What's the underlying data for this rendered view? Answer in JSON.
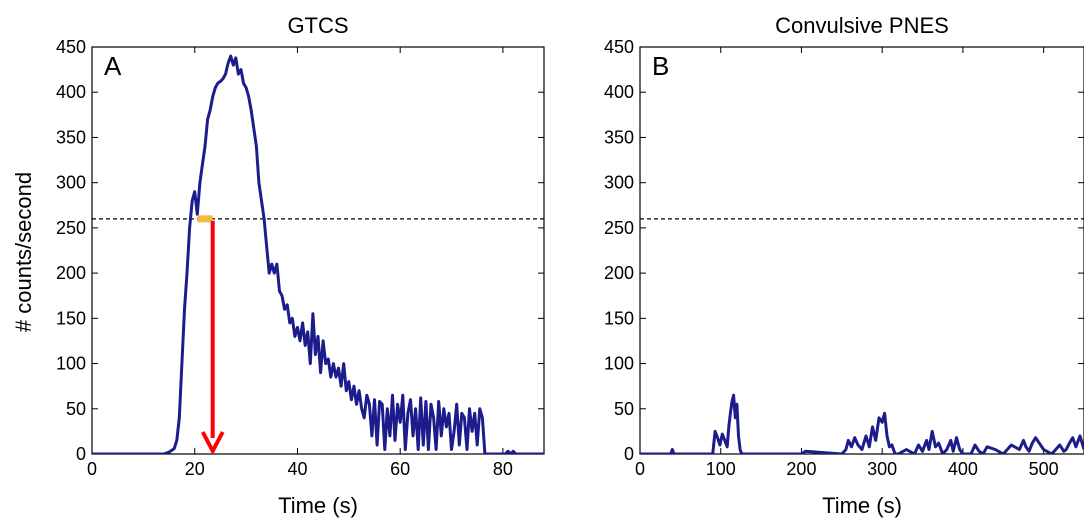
{
  "figure": {
    "ylabel": "# counts/second"
  },
  "chart_data": [
    {
      "type": "line",
      "panel": "A",
      "title": "GTCS",
      "xlabel": "Time (s)",
      "ylabel": "# counts/second",
      "xlim": [
        0,
        88
      ],
      "ylim": [
        0,
        450
      ],
      "xticks": [
        0,
        20,
        40,
        60,
        80
      ],
      "yticks": [
        0,
        50,
        100,
        150,
        200,
        250,
        300,
        350,
        400,
        450
      ],
      "threshold": 260,
      "colors": {
        "line": "#1c1c8c",
        "threshold": "#000000",
        "marker_bar": "#f5b942",
        "arrow": "#ff0000"
      },
      "marker": {
        "x_start": 20.5,
        "x_end": 23.5,
        "y": 260,
        "arrow_x": 23.5
      },
      "series": [
        {
          "x": [
            0,
            14,
            15,
            16,
            16.5,
            17,
            17.5,
            18,
            18.5,
            19,
            19.5,
            20,
            20.5,
            21,
            21.5,
            22,
            22.5,
            23,
            23.5,
            24,
            24.5,
            25,
            25.5,
            26,
            26.5,
            27,
            27.5,
            28,
            28.5,
            29,
            29.5,
            30,
            30.5,
            31,
            31.5,
            32,
            32.5,
            33,
            33.5,
            34,
            34.5,
            35,
            35.5,
            36,
            36.5,
            37,
            37.5,
            38,
            38.5,
            39,
            39.5,
            40,
            40.5,
            41,
            41.5,
            42,
            42.5,
            43,
            43.5,
            44,
            44.5,
            45,
            45.5,
            46,
            46.5,
            47,
            47.5,
            48,
            48.5,
            49,
            49.5,
            50,
            50.5,
            51,
            51.5,
            52,
            52.5,
            53,
            53.5,
            54,
            54.5,
            55,
            55.5,
            56,
            56.5,
            57,
            57.5,
            58,
            58.5,
            59,
            59.5,
            60,
            60.5,
            61,
            61.5,
            62,
            62.5,
            63,
            63.5,
            64,
            64.5,
            65,
            65.5,
            66,
            66.5,
            67,
            67.5,
            68,
            68.5,
            69,
            69.5,
            70,
            70.5,
            71,
            71.5,
            72,
            72.5,
            73,
            73.5,
            74,
            74.5,
            75,
            75.5,
            76,
            76.5,
            77,
            80,
            80.5,
            81,
            81.5,
            82,
            82.5,
            83,
            88
          ],
          "y": [
            0,
            0,
            2,
            6,
            15,
            40,
            100,
            160,
            200,
            250,
            280,
            290,
            265,
            300,
            320,
            340,
            370,
            380,
            395,
            405,
            410,
            412,
            415,
            420,
            432,
            440,
            430,
            438,
            420,
            425,
            410,
            405,
            395,
            380,
            360,
            340,
            300,
            280,
            260,
            230,
            200,
            210,
            200,
            210,
            180,
            175,
            160,
            165,
            145,
            150,
            130,
            140,
            125,
            145,
            120,
            135,
            100,
            155,
            110,
            130,
            90,
            125,
            100,
            105,
            85,
            100,
            85,
            95,
            75,
            100,
            70,
            80,
            60,
            75,
            55,
            70,
            50,
            40,
            65,
            55,
            20,
            60,
            10,
            58,
            55,
            5,
            50,
            20,
            65,
            15,
            55,
            35,
            65,
            5,
            45,
            60,
            20,
            50,
            5,
            62,
            10,
            58,
            5,
            55,
            40,
            5,
            58,
            20,
            50,
            30,
            45,
            5,
            25,
            55,
            10,
            45,
            40,
            5,
            50,
            25,
            45,
            10,
            50,
            40,
            0,
            0,
            0,
            0,
            3,
            0,
            3,
            0,
            0,
            0
          ]
        }
      ]
    },
    {
      "type": "line",
      "panel": "B",
      "title": "Convulsive PNES",
      "xlabel": "Time (s)",
      "xlim": [
        0,
        550
      ],
      "ylim": [
        0,
        450
      ],
      "xticks": [
        0,
        100,
        200,
        300,
        400,
        500
      ],
      "yticks": [
        0,
        50,
        100,
        150,
        200,
        250,
        300,
        350,
        400,
        450
      ],
      "threshold": 260,
      "colors": {
        "line": "#1c1c8c",
        "threshold": "#000000"
      },
      "series": [
        {
          "x": [
            0,
            38,
            40,
            42,
            44,
            90,
            93,
            96,
            99,
            102,
            105,
            108,
            110,
            112,
            114,
            116,
            118,
            120,
            122,
            124,
            126,
            130,
            200,
            205,
            250,
            255,
            258,
            262,
            266,
            270,
            275,
            280,
            284,
            288,
            292,
            296,
            300,
            303,
            306,
            309,
            312,
            316,
            320,
            330,
            340,
            345,
            350,
            355,
            358,
            362,
            366,
            370,
            375,
            380,
            385,
            388,
            392,
            396,
            400,
            410,
            415,
            420,
            425,
            430,
            440,
            450,
            460,
            470,
            475,
            478,
            482,
            486,
            490,
            500,
            510,
            520,
            525,
            528,
            532,
            536,
            540,
            545,
            550
          ],
          "y": [
            0,
            0,
            5,
            0,
            0,
            0,
            25,
            18,
            10,
            22,
            15,
            8,
            30,
            45,
            58,
            65,
            40,
            55,
            20,
            5,
            0,
            0,
            0,
            3,
            0,
            5,
            15,
            8,
            18,
            10,
            5,
            20,
            8,
            30,
            15,
            40,
            35,
            45,
            20,
            8,
            10,
            0,
            0,
            5,
            0,
            10,
            3,
            15,
            5,
            25,
            8,
            12,
            0,
            5,
            15,
            3,
            18,
            5,
            0,
            0,
            10,
            3,
            0,
            8,
            5,
            0,
            10,
            5,
            15,
            8,
            3,
            12,
            18,
            5,
            0,
            10,
            3,
            5,
            12,
            18,
            8,
            20,
            5
          ]
        }
      ]
    }
  ]
}
